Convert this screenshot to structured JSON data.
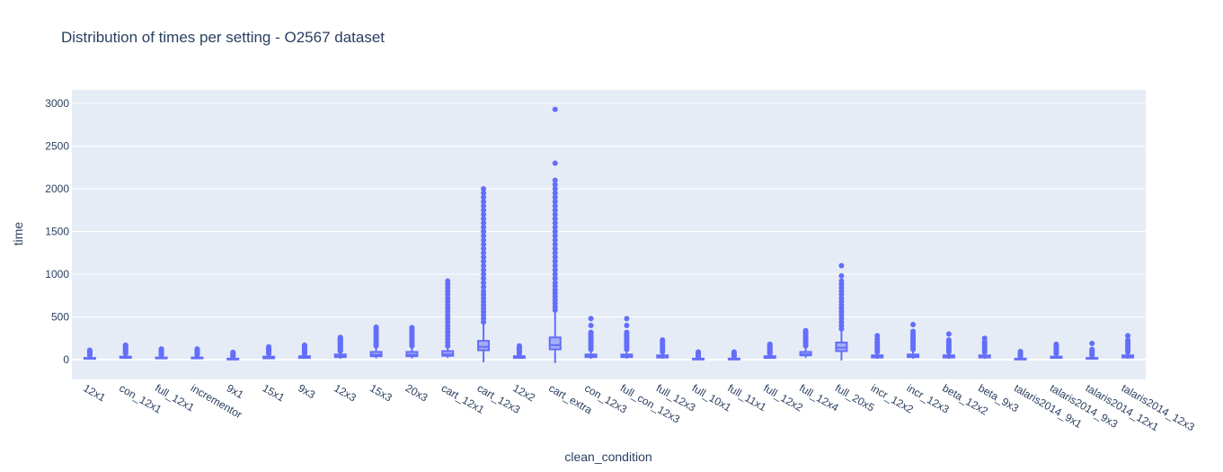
{
  "chart_data": {
    "type": "box",
    "title": "Distribution of times per setting - O2567 dataset",
    "xlabel": "clean_condition",
    "ylabel": "time",
    "ylim": [
      -220,
      3150
    ],
    "yticks": [
      0,
      500,
      1000,
      1500,
      2000,
      2500,
      3000
    ],
    "grid": true,
    "legend": "none",
    "color": "#636efa",
    "plot_bg": "#e5ecf6",
    "categories": [
      "12x1",
      "con_12x1",
      "full_12x1",
      "incrementor",
      "9x1",
      "15x1",
      "9x3",
      "12x3",
      "15x3",
      "20x3",
      "cart_12x1",
      "cart_12x3",
      "12x2",
      "cart_extra",
      "con_12x3",
      "full_con_12x3",
      "full_12x3",
      "full_10x1",
      "full_11x1",
      "full_12x2",
      "full_12x4",
      "full_20x5",
      "incr_12x2",
      "incr_12x3",
      "beta_12x2",
      "beta_9x3",
      "talaris2014_9x1",
      "talaris2014_9x3",
      "talaris2014_12x1",
      "talaris2014_12x3"
    ],
    "boxes": [
      {
        "min": 5,
        "q1": 10,
        "median": 15,
        "q3": 20,
        "max": 40,
        "outliers": [
          50,
          60,
          70,
          80,
          90,
          100,
          110
        ]
      },
      {
        "min": 10,
        "q1": 20,
        "median": 25,
        "q3": 35,
        "max": 60,
        "outliers": [
          70,
          80,
          90,
          100,
          110,
          120,
          130,
          140,
          150,
          160,
          170
        ]
      },
      {
        "min": 8,
        "q1": 15,
        "median": 20,
        "q3": 25,
        "max": 45,
        "outliers": [
          55,
          65,
          75,
          85,
          95,
          105,
          115,
          125
        ]
      },
      {
        "min": 8,
        "q1": 15,
        "median": 20,
        "q3": 25,
        "max": 45,
        "outliers": [
          55,
          65,
          75,
          85,
          95,
          105,
          115,
          125
        ]
      },
      {
        "min": 3,
        "q1": 6,
        "median": 8,
        "q3": 12,
        "max": 25,
        "outliers": [
          35,
          45,
          55,
          65,
          75,
          85
        ]
      },
      {
        "min": 10,
        "q1": 15,
        "median": 25,
        "q3": 35,
        "max": 60,
        "outliers": [
          70,
          80,
          90,
          100,
          110,
          120,
          130,
          140,
          150
        ]
      },
      {
        "min": 10,
        "q1": 20,
        "median": 30,
        "q3": 40,
        "max": 60,
        "outliers": [
          70,
          80,
          90,
          100,
          110,
          120,
          130,
          140,
          150,
          160,
          170
        ]
      },
      {
        "min": 10,
        "q1": 30,
        "median": 40,
        "q3": 60,
        "max": 90,
        "outliers": [
          100,
          110,
          120,
          130,
          140,
          150,
          160,
          170,
          180,
          190,
          200,
          210,
          220,
          230,
          240,
          250,
          260
        ]
      },
      {
        "min": 15,
        "q1": 40,
        "median": 55,
        "q3": 90,
        "max": 140,
        "outliers": [
          160,
          180,
          200,
          220,
          240,
          260,
          280,
          300,
          320,
          340,
          360,
          380
        ]
      },
      {
        "min": 15,
        "q1": 40,
        "median": 55,
        "q3": 90,
        "max": 140,
        "outliers": [
          160,
          180,
          200,
          220,
          240,
          260,
          280,
          300,
          320,
          340,
          360,
          375
        ]
      },
      {
        "min": 20,
        "q1": 45,
        "median": 60,
        "q3": 100,
        "max": 140,
        "outliers": [
          160,
          200,
          240,
          280,
          320,
          360,
          400,
          440,
          480,
          520,
          560,
          600,
          640,
          680,
          720,
          760,
          800,
          840,
          880,
          920
        ]
      },
      {
        "min": -30,
        "q1": 110,
        "median": 150,
        "q3": 220,
        "max": 410,
        "outliers": [
          440,
          480,
          520,
          560,
          600,
          640,
          680,
          720,
          760,
          800,
          850,
          900,
          950,
          1000,
          1050,
          1100,
          1150,
          1200,
          1250,
          1300,
          1350,
          1400,
          1450,
          1500,
          1550,
          1600,
          1650,
          1700,
          1750,
          1800,
          1850,
          1900,
          1950,
          2000
        ]
      },
      {
        "min": 10,
        "q1": 20,
        "median": 30,
        "q3": 40,
        "max": 60,
        "outliers": [
          70,
          80,
          90,
          100,
          110,
          120,
          130,
          140,
          150,
          160
        ]
      },
      {
        "min": -40,
        "q1": 120,
        "median": 170,
        "q3": 260,
        "max": 560,
        "outliers": [
          580,
          620,
          660,
          700,
          740,
          780,
          820,
          860,
          900,
          950,
          1000,
          1050,
          1100,
          1150,
          1200,
          1250,
          1300,
          1350,
          1400,
          1450,
          1500,
          1550,
          1600,
          1650,
          1700,
          1750,
          1800,
          1850,
          1900,
          1950,
          2000,
          2050,
          2100,
          2300,
          2930
        ]
      },
      {
        "min": 10,
        "q1": 30,
        "median": 40,
        "q3": 60,
        "max": 100,
        "outliers": [
          120,
          140,
          160,
          180,
          200,
          220,
          240,
          260,
          280,
          300,
          320,
          400,
          480
        ]
      },
      {
        "min": 10,
        "q1": 30,
        "median": 40,
        "q3": 60,
        "max": 100,
        "outliers": [
          120,
          140,
          160,
          180,
          200,
          220,
          240,
          260,
          280,
          300,
          320,
          400,
          480
        ]
      },
      {
        "min": 10,
        "q1": 25,
        "median": 35,
        "q3": 50,
        "max": 80,
        "outliers": [
          90,
          110,
          130,
          150,
          170,
          190,
          210,
          230
        ]
      },
      {
        "min": 3,
        "q1": 6,
        "median": 8,
        "q3": 12,
        "max": 25,
        "outliers": [
          35,
          45,
          55,
          65,
          75,
          90
        ]
      },
      {
        "min": 3,
        "q1": 6,
        "median": 8,
        "q3": 12,
        "max": 25,
        "outliers": [
          35,
          45,
          55,
          65,
          75,
          90
        ]
      },
      {
        "min": 10,
        "q1": 20,
        "median": 30,
        "q3": 40,
        "max": 60,
        "outliers": [
          70,
          80,
          90,
          100,
          110,
          120,
          130,
          140,
          150,
          160,
          170,
          180
        ]
      },
      {
        "min": 20,
        "q1": 50,
        "median": 60,
        "q3": 90,
        "max": 140,
        "outliers": [
          160,
          180,
          200,
          220,
          240,
          260,
          280,
          300,
          320,
          340
        ]
      },
      {
        "min": -10,
        "q1": 100,
        "median": 140,
        "q3": 200,
        "max": 340,
        "outliers": [
          360,
          400,
          440,
          480,
          520,
          560,
          600,
          640,
          680,
          720,
          760,
          800,
          840,
          880,
          920,
          980,
          1100
        ]
      },
      {
        "min": 10,
        "q1": 25,
        "median": 35,
        "q3": 50,
        "max": 80,
        "outliers": [
          90,
          110,
          130,
          150,
          170,
          190,
          210,
          240,
          280
        ]
      },
      {
        "min": 10,
        "q1": 30,
        "median": 40,
        "q3": 60,
        "max": 100,
        "outliers": [
          120,
          140,
          160,
          180,
          200,
          220,
          240,
          260,
          280,
          300,
          330,
          410
        ]
      },
      {
        "min": 10,
        "q1": 25,
        "median": 35,
        "q3": 50,
        "max": 80,
        "outliers": [
          90,
          110,
          130,
          150,
          170,
          190,
          210,
          230,
          300
        ]
      },
      {
        "min": 10,
        "q1": 25,
        "median": 35,
        "q3": 50,
        "max": 80,
        "outliers": [
          90,
          110,
          130,
          150,
          170,
          190,
          210,
          250
        ]
      },
      {
        "min": 3,
        "q1": 6,
        "median": 8,
        "q3": 12,
        "max": 25,
        "outliers": [
          35,
          45,
          55,
          65,
          75,
          85,
          95
        ]
      },
      {
        "min": 10,
        "q1": 20,
        "median": 25,
        "q3": 35,
        "max": 60,
        "outliers": [
          70,
          80,
          90,
          100,
          110,
          120,
          130,
          140,
          150,
          160,
          170,
          180
        ]
      },
      {
        "min": 5,
        "q1": 10,
        "median": 15,
        "q3": 20,
        "max": 40,
        "outliers": [
          50,
          60,
          70,
          80,
          90,
          100,
          110,
          120,
          190
        ]
      },
      {
        "min": 10,
        "q1": 25,
        "median": 35,
        "q3": 50,
        "max": 80,
        "outliers": [
          90,
          110,
          130,
          150,
          170,
          190,
          210,
          230,
          280
        ]
      }
    ]
  }
}
